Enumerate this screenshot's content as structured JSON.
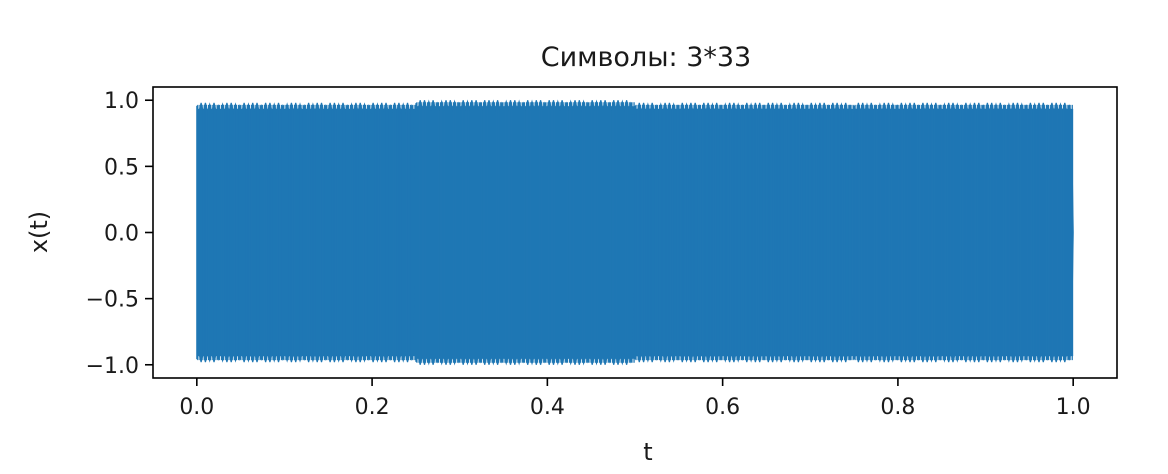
{
  "chart_data": {
    "type": "line",
    "title": "Символы: 3*33",
    "xlabel": "t",
    "ylabel": "x(t)",
    "xlim": [
      -0.05,
      1.05
    ],
    "ylim": [
      -1.1,
      1.1
    ],
    "xticks": [
      0.0,
      0.2,
      0.4,
      0.6,
      0.8,
      1.0
    ],
    "xtick_labels": [
      "0.0",
      "0.2",
      "0.4",
      "0.6",
      "0.8",
      "1.0"
    ],
    "yticks": [
      -1.0,
      -0.5,
      0.0,
      0.5,
      1.0
    ],
    "ytick_labels": [
      "−1.0",
      "−0.5",
      "0.0",
      "0.5",
      "1.0"
    ],
    "grid": false,
    "color": "#1f77b4",
    "series": [
      {
        "segments": [
          {
            "t_start": 0.0,
            "t_end": 0.25,
            "symbol": "3",
            "fmin": -0.98,
            "fmax": 0.98
          },
          {
            "t_start": 0.25,
            "t_end": 0.5,
            "symbol": "*",
            "fmin": -1.0,
            "fmax": 1.0
          },
          {
            "t_start": 0.5,
            "t_end": 0.75,
            "symbol": "3",
            "fmin": -0.98,
            "fmax": 0.98
          },
          {
            "t_start": 0.75,
            "t_end": 1.0,
            "symbol": "3",
            "fmin": -0.98,
            "fmax": 0.98
          }
        ]
      }
    ]
  }
}
